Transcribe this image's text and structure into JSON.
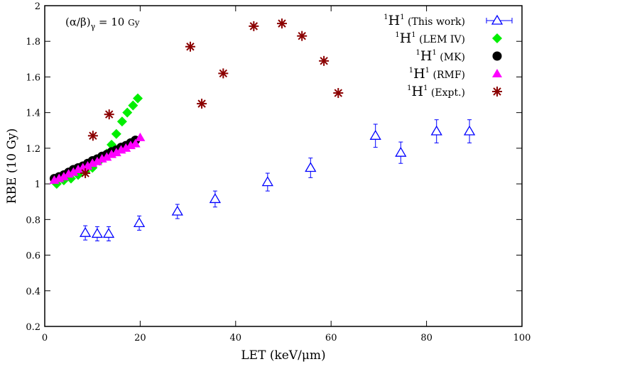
{
  "chart_data": {
    "type": "scatter",
    "title": "",
    "annotation": "(α/β)γ = 10 Gy",
    "annotation_parts": {
      "main": "(α/β)",
      "sub": "γ",
      "rest": " = 10 ",
      "unit": "Gy"
    },
    "xlabel": "LET (keV/μm)",
    "ylabel": "RBE (10 Gy)",
    "xlim": [
      0,
      100
    ],
    "ylim": [
      0.2,
      2
    ],
    "xticks": [
      0,
      20,
      40,
      60,
      80,
      100
    ],
    "yticks": [
      0.2,
      0.4,
      0.6,
      0.8,
      1,
      1.2,
      1.4,
      1.6,
      1.8,
      2
    ],
    "ytick_labels": [
      "0.2",
      "0.4",
      "0.6",
      "0.8",
      "1",
      "1.2",
      "1.4",
      "1.6",
      "1.8",
      "2"
    ],
    "grid": false,
    "legend_placement": "top-right",
    "series": [
      {
        "name": "(This work)",
        "color": "#0000ff",
        "marker": "open-triangle-errorbar",
        "x": [
          8.5,
          11,
          13.4,
          19.8,
          27.8,
          35.7,
          46.7,
          55.7,
          69.3,
          74.6,
          82.1,
          89
        ],
        "y": [
          0.725,
          0.72,
          0.72,
          0.78,
          0.845,
          0.915,
          1.01,
          1.09,
          1.27,
          1.175,
          1.295,
          1.295
        ],
        "yerr": [
          0.04,
          0.04,
          0.04,
          0.04,
          0.04,
          0.045,
          0.05,
          0.055,
          0.065,
          0.06,
          0.065,
          0.065
        ]
      },
      {
        "name": "(LEM IV)",
        "color": "#00ee00",
        "marker": "diamond",
        "x": [
          2.5,
          4,
          5.5,
          7,
          8.5,
          10,
          11.5,
          13,
          14,
          15,
          16.2,
          17.3,
          18.5,
          19.5
        ],
        "y": [
          1.0,
          1.02,
          1.03,
          1.05,
          1.07,
          1.09,
          1.13,
          1.17,
          1.22,
          1.28,
          1.35,
          1.4,
          1.44,
          1.48
        ]
      },
      {
        "name": "(MK)",
        "color": "#000000",
        "marker": "circle",
        "x": [
          2,
          3,
          4,
          5,
          6,
          7,
          8,
          9,
          10,
          11,
          12,
          13,
          14,
          15,
          16,
          17,
          18,
          19
        ],
        "y": [
          1.03,
          1.04,
          1.05,
          1.065,
          1.08,
          1.09,
          1.1,
          1.115,
          1.13,
          1.14,
          1.155,
          1.165,
          1.18,
          1.19,
          1.205,
          1.215,
          1.23,
          1.245
        ]
      },
      {
        "name": "(RMF)",
        "color": "#ff00ff",
        "marker": "triangle",
        "x": [
          2,
          3,
          4,
          5,
          6,
          7,
          8,
          9,
          10,
          11,
          12,
          13,
          14,
          15,
          16,
          17,
          18,
          19,
          20
        ],
        "y": [
          1.02,
          1.03,
          1.04,
          1.055,
          1.065,
          1.08,
          1.09,
          1.1,
          1.115,
          1.125,
          1.14,
          1.15,
          1.165,
          1.175,
          1.19,
          1.2,
          1.215,
          1.225,
          1.26
        ]
      },
      {
        "name": "(Expt.)",
        "color": "#8b0000",
        "marker": "asterisk",
        "x": [
          8.5,
          10.1,
          13.5,
          30.5,
          32.9,
          37.4,
          43.8,
          49.7,
          53.9,
          58.5,
          61.5
        ],
        "y": [
          1.06,
          1.27,
          1.39,
          1.77,
          1.45,
          1.62,
          1.885,
          1.9,
          1.83,
          1.69,
          1.51
        ]
      }
    ],
    "legend_prefix": {
      "sup_left": "1",
      "base": "H",
      "sup_right": "1"
    }
  }
}
